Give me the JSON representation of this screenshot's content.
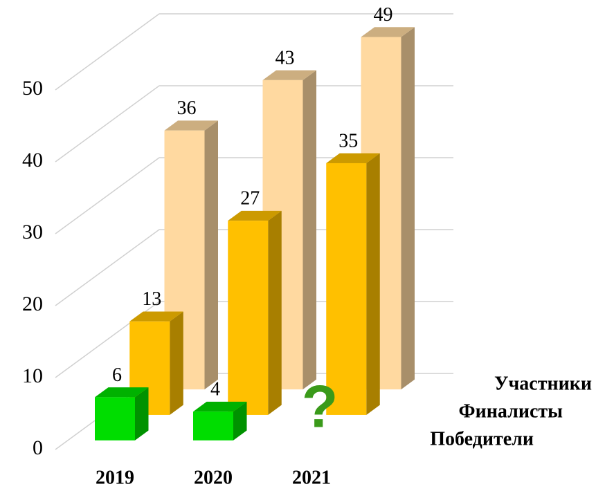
{
  "chart_data": {
    "type": "bar3d",
    "categories": [
      "2019",
      "2020",
      "2021"
    ],
    "series": [
      {
        "name": "Участники",
        "color": "#FFD9A0",
        "values": [
          36,
          43,
          49
        ]
      },
      {
        "name": "Финалисты",
        "color": "#FFC000",
        "values": [
          13,
          27,
          35
        ]
      },
      {
        "name": "Победители",
        "color": "#00DD00",
        "values": [
          6,
          4,
          null
        ]
      }
    ],
    "annotation": "?",
    "annotation_color": "#3A9A1A",
    "ylim": [
      0,
      50
    ],
    "yticks": [
      0,
      10,
      20,
      30,
      40,
      50
    ],
    "grid": true
  }
}
